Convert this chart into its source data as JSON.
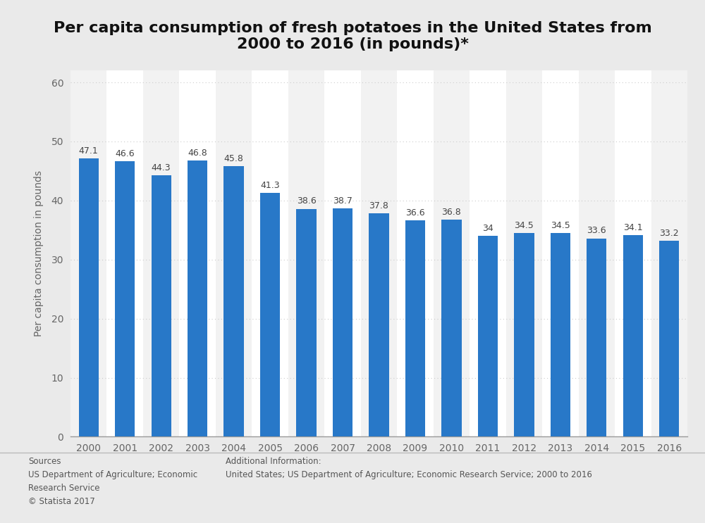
{
  "title": "Per capita consumption of fresh potatoes in the United States from\n2000 to 2016 (in pounds)*",
  "years": [
    2000,
    2001,
    2002,
    2003,
    2004,
    2005,
    2006,
    2007,
    2008,
    2009,
    2010,
    2011,
    2012,
    2013,
    2014,
    2015,
    2016
  ],
  "values": [
    47.1,
    46.6,
    44.3,
    46.8,
    45.8,
    41.3,
    38.6,
    38.7,
    37.8,
    36.6,
    36.8,
    34.0,
    34.5,
    34.5,
    33.6,
    34.1,
    33.2
  ],
  "bar_color": "#2878C8",
  "ylabel": "Per capita consumption in pounds",
  "ylim": [
    0,
    62
  ],
  "yticks": [
    0,
    10,
    20,
    30,
    40,
    50,
    60
  ],
  "bg_color": "#eaeaea",
  "plot_bg_color": "#ffffff",
  "col_bg_odd": "#f2f2f2",
  "col_bg_even": "#ffffff",
  "title_fontsize": 16,
  "label_fontsize": 10,
  "sources_text": "Sources\nUS Department of Agriculture; Economic\nResearch Service\n© Statista 2017",
  "additional_text": "Additional Information:\nUnited States; US Department of Agriculture; Economic Research Service; 2000 to 2016",
  "footer_bg_color": "#d9d9d9",
  "grid_color": "#cccccc",
  "text_color": "#666666",
  "value_color": "#444444"
}
